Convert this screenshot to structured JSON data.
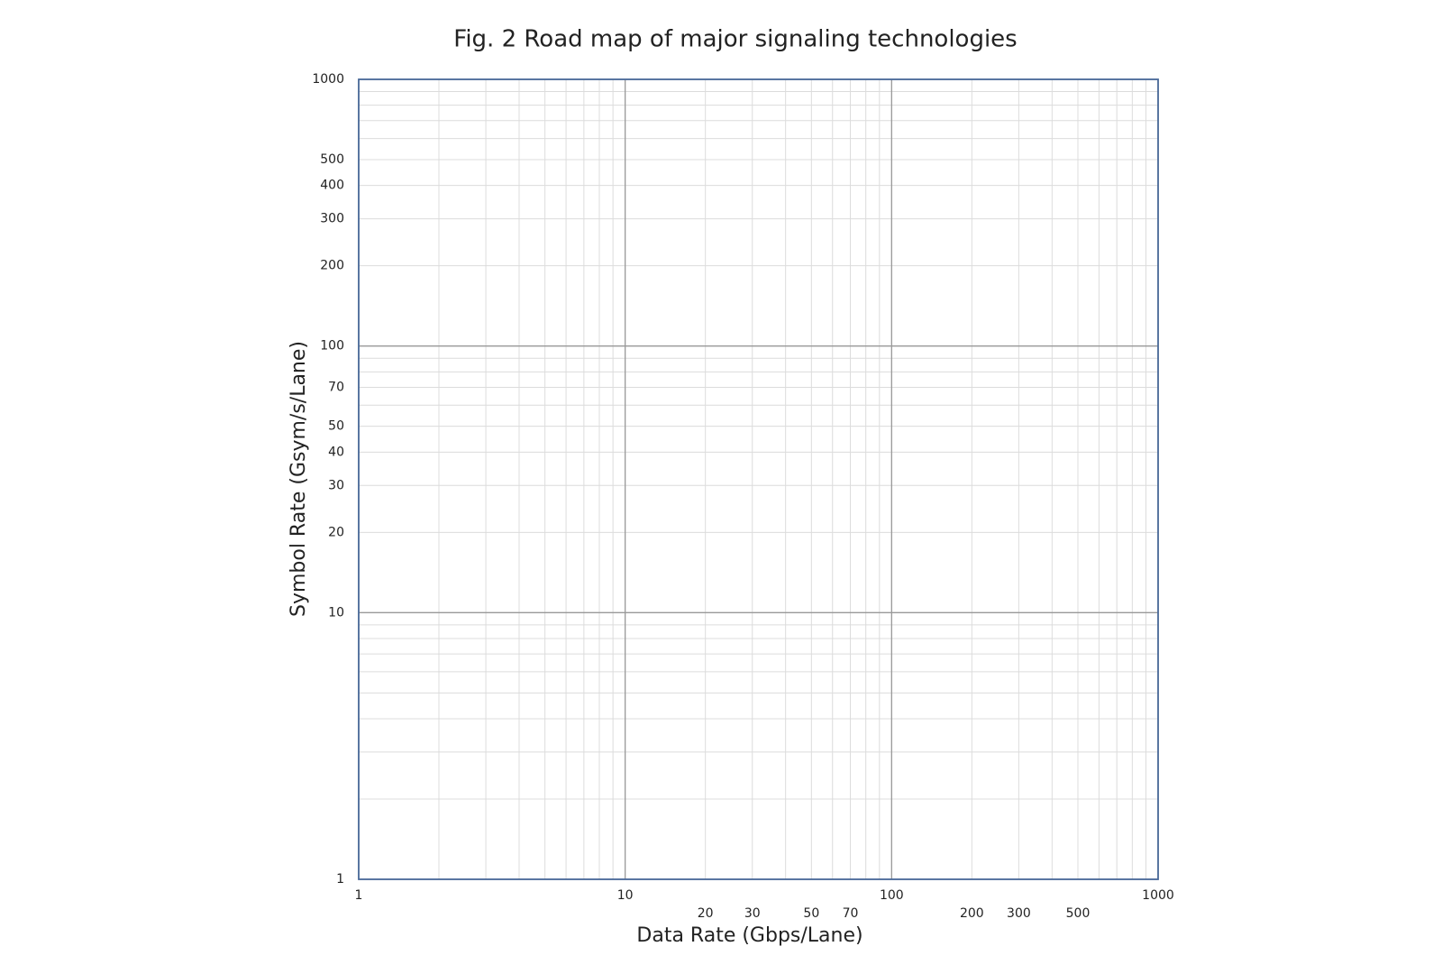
{
  "chart_data": {
    "type": "scatter",
    "title": "Fig. 2 Road map of major signaling technologies",
    "x_label": "Data Rate (Gbps/Lane)",
    "y_label": "Symbol Rate (Gsym/s/Lane)",
    "xlim": [
      1,
      1000
    ],
    "ylim": [
      1,
      1000
    ],
    "xscale": "log",
    "yscale": "log",
    "xticks": [
      1,
      10,
      20,
      30,
      50,
      70,
      100,
      200,
      300,
      500,
      1000
    ],
    "yticks": [
      1,
      10,
      20,
      30,
      40,
      50,
      70,
      100,
      200,
      300,
      400,
      500,
      1000
    ],
    "grid": true,
    "minor_grid": true,
    "frame_color": "#4a6a9a"
  }
}
